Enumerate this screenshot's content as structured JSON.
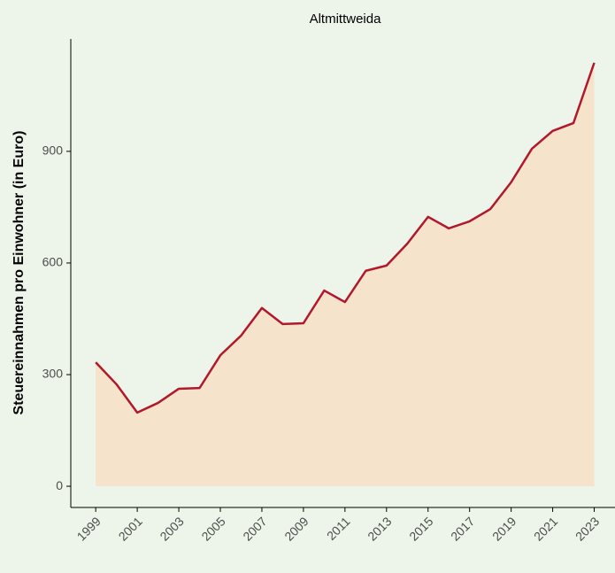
{
  "chart_data": {
    "type": "area",
    "title": "Altmittweida",
    "y_label": "Steuereinnahmen pro Einwohner (in Euro)",
    "x": [
      1999,
      2000,
      2001,
      2002,
      2003,
      2004,
      2005,
      2006,
      2007,
      2008,
      2009,
      2010,
      2011,
      2012,
      2013,
      2014,
      2015,
      2016,
      2017,
      2018,
      2019,
      2020,
      2021,
      2022,
      2023
    ],
    "series": [
      {
        "name": "Altmittweida",
        "color": "#b2182b",
        "fill": "#f5e3cb",
        "values": [
          333,
          274,
          198,
          224,
          262,
          264,
          352,
          405,
          479,
          436,
          438,
          526,
          495,
          579,
          593,
          652,
          724,
          693,
          712,
          745,
          817,
          907,
          955,
          976,
          1138
        ]
      }
    ],
    "xlim": [
      1997.8,
      2024.0
    ],
    "xticks": [
      1999,
      2001,
      2003,
      2005,
      2007,
      2009,
      2011,
      2013,
      2015,
      2017,
      2019,
      2021,
      2023
    ],
    "ylim": [
      -57,
      1202
    ],
    "yticks": [
      0,
      300,
      600,
      900
    ]
  }
}
